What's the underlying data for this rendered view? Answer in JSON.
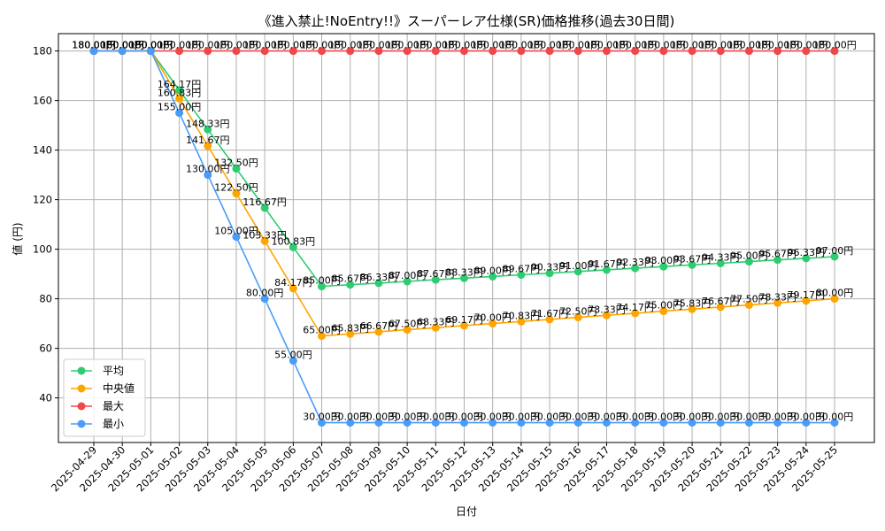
{
  "chart_data": {
    "type": "line",
    "title": "《進入禁止!NoEntry!!》スーパーレア仕様(SR)価格推移(過去30日間)",
    "xlabel": "日付",
    "ylabel": "値 (円)",
    "ylim": [
      22,
      187
    ],
    "yticks": [
      40,
      60,
      80,
      100,
      120,
      140,
      160,
      180
    ],
    "grid": true,
    "legend_position": "bottom-left",
    "categories": [
      "2025-04-29",
      "2025-04-30",
      "2025-05-01",
      "2025-05-02",
      "2025-05-03",
      "2025-05-04",
      "2025-05-05",
      "2025-05-06",
      "2025-05-07",
      "2025-05-08",
      "2025-05-09",
      "2025-05-10",
      "2025-05-11",
      "2025-05-12",
      "2025-05-13",
      "2025-05-14",
      "2025-05-15",
      "2025-05-16",
      "2025-05-17",
      "2025-05-18",
      "2025-05-19",
      "2025-05-20",
      "2025-05-21",
      "2025-05-22",
      "2025-05-23",
      "2025-05-24",
      "2025-05-25"
    ],
    "series": [
      {
        "name": "平均",
        "color": "#2ecc71",
        "values": [
          180,
          180,
          180,
          164.17,
          148.33,
          132.5,
          116.67,
          100.83,
          85,
          85.67,
          86.33,
          87,
          87.67,
          88.33,
          89,
          89.67,
          90.33,
          91,
          91.67,
          92.33,
          93,
          93.67,
          94.33,
          95,
          95.67,
          96.33,
          97
        ],
        "labels": [
          "180.00円",
          "180.00円",
          "180.00円",
          "164.17円",
          "148.33円",
          "132.50円",
          "116.67円",
          "100.83円",
          "85.00円",
          "85.67円",
          "86.33円",
          "87.00円",
          "87.67円",
          "88.33円",
          "89.00円",
          "89.67円",
          "90.33円",
          "91.00円",
          "91.67円",
          "92.33円",
          "93.00円",
          "93.67円",
          "94.33円",
          "95.00円",
          "95.67円",
          "96.33円",
          "97.00円"
        ]
      },
      {
        "name": "中央値",
        "color": "#ffa500",
        "values": [
          180,
          180,
          180,
          160.83,
          141.67,
          122.5,
          103.33,
          84.17,
          65,
          65.83,
          66.67,
          67.5,
          68.33,
          69.17,
          70,
          70.83,
          71.67,
          72.5,
          73.33,
          74.17,
          75,
          75.83,
          76.67,
          77.5,
          78.33,
          79.17,
          80
        ],
        "labels": [
          "180.00円",
          "180.00円",
          "180.00円",
          "160.83円",
          "141.67円",
          "122.50円",
          "103.33円",
          "84.17円",
          "65.00円",
          "65.83円",
          "66.67円",
          "67.50円",
          "68.33円",
          "69.17円",
          "70.00円",
          "70.83円",
          "71.67円",
          "72.50円",
          "73.33円",
          "74.17円",
          "75.00円",
          "75.83円",
          "76.67円",
          "77.50円",
          "78.33円",
          "79.17円",
          "80.00円"
        ]
      },
      {
        "name": "最大",
        "color": "#f04848",
        "values": [
          180,
          180,
          180,
          180,
          180,
          180,
          180,
          180,
          180,
          180,
          180,
          180,
          180,
          180,
          180,
          180,
          180,
          180,
          180,
          180,
          180,
          180,
          180,
          180,
          180,
          180,
          180
        ],
        "labels": [
          "180.00円",
          "180.00円",
          "180.00円",
          "180.00円",
          "180.00円",
          "180.00円",
          "180.00円",
          "180.00円",
          "180.00円",
          "180.00円",
          "180.00円",
          "180.00円",
          "180.00円",
          "180.00円",
          "180.00円",
          "180.00円",
          "180.00円",
          "180.00円",
          "180.00円",
          "180.00円",
          "180.00円",
          "180.00円",
          "180.00円",
          "180.00円",
          "180.00円",
          "180.00円",
          "180.00円"
        ]
      },
      {
        "name": "最小",
        "color": "#4a9cf7",
        "values": [
          180,
          180,
          180,
          155,
          130,
          105,
          80,
          55,
          30,
          30,
          30,
          30,
          30,
          30,
          30,
          30,
          30,
          30,
          30,
          30,
          30,
          30,
          30,
          30,
          30,
          30,
          30
        ],
        "labels": [
          "180.00円",
          "180.00円",
          "180.00円",
          "155.00円",
          "130.00円",
          "105.00円",
          "80.00円",
          "55.00円",
          "30.00円",
          "30.00円",
          "30.00円",
          "30.00円",
          "30.00円",
          "30.00円",
          "30.00円",
          "30.00円",
          "30.00円",
          "30.00円",
          "30.00円",
          "30.00円",
          "30.00円",
          "30.00円",
          "30.00円",
          "30.00円",
          "30.00円",
          "30.00円",
          "30.00円"
        ]
      }
    ]
  }
}
